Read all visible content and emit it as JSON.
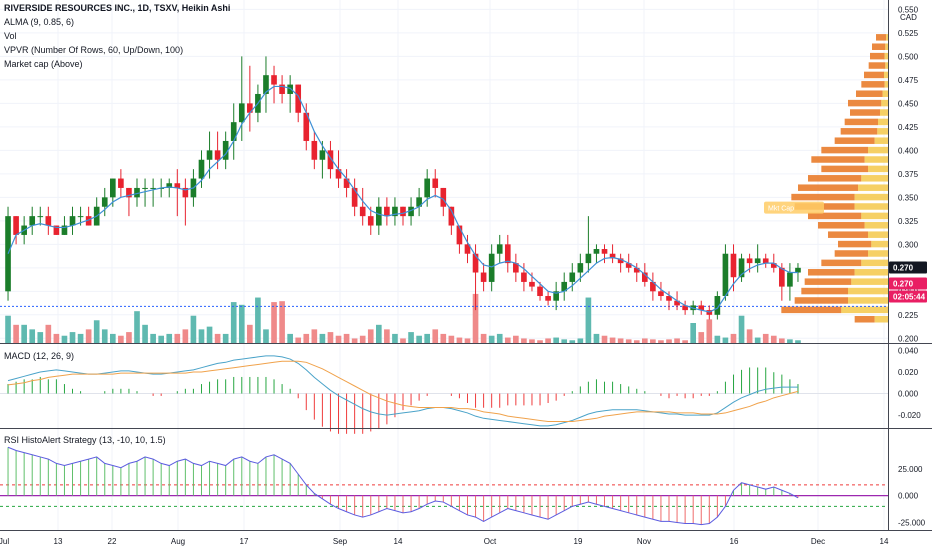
{
  "header": {
    "title": "RIVERSIDE RESOURCES INC., 1D, TSXV, Heikin Ashi",
    "indicators": [
      "ALMA (9, 0.85, 6)",
      "Vol",
      "VPVR (Number Of Rows, 60, Up/Down, 100)",
      "Market cap (Above)"
    ],
    "macd_label": "MACD (12, 26, 9)",
    "rsi_label": "RSI HistoAlert Strategy (13, -10, 10, 1.5)"
  },
  "price_axis": {
    "currency": "CAD",
    "ticks": [
      "0.550",
      "0.525",
      "0.500",
      "0.475",
      "0.450",
      "0.425",
      "0.400",
      "0.375",
      "0.350",
      "0.325",
      "0.300",
      "0.275",
      "0.250",
      "0.225",
      "0.200"
    ],
    "last_price": "0.270",
    "last_price2": "0.270",
    "countdown": "02:05:44",
    "mkt_cap_label": "Mkt Cap"
  },
  "macd_axis": {
    "ticks": [
      "0.040",
      "0.020",
      "0.000",
      "-0.020"
    ]
  },
  "rsi_axis": {
    "ticks": [
      "25.000",
      "0.000",
      "-25.000"
    ]
  },
  "time_axis": [
    "Jul",
    "13",
    "22",
    "Aug",
    "17",
    "Sep",
    "14",
    "Oct",
    "19",
    "Nov",
    "16",
    "Dec",
    "14"
  ],
  "colors": {
    "up": "#1b7d2a",
    "down": "#e8232f",
    "alma": "#3d8fd6",
    "vol_up": "#5fb9b0",
    "vol_down": "#ef8a8a",
    "vpvr_up": "#f5c84a",
    "vpvr_down": "#e8741f",
    "macd_line": "#4aa3c9",
    "signal_line": "#f0a24b",
    "last_price_bg": "#131722",
    "last_price2_bg": "#e91e63"
  },
  "chart_data": {
    "type": "candlestick",
    "title": "RIVERSIDE RESOURCES INC., 1D, TSXV, Heikin Ashi",
    "ylim": [
      0.195,
      0.56
    ],
    "candles": [
      [
        0.25,
        0.34,
        0.24,
        0.33
      ],
      [
        0.33,
        0.33,
        0.3,
        0.31
      ],
      [
        0.31,
        0.33,
        0.3,
        0.32
      ],
      [
        0.32,
        0.34,
        0.31,
        0.33
      ],
      [
        0.33,
        0.34,
        0.32,
        0.33
      ],
      [
        0.33,
        0.34,
        0.31,
        0.32
      ],
      [
        0.32,
        0.32,
        0.31,
        0.31
      ],
      [
        0.31,
        0.33,
        0.31,
        0.32
      ],
      [
        0.32,
        0.34,
        0.31,
        0.33
      ],
      [
        0.33,
        0.34,
        0.32,
        0.33
      ],
      [
        0.33,
        0.34,
        0.32,
        0.32
      ],
      [
        0.32,
        0.35,
        0.32,
        0.34
      ],
      [
        0.34,
        0.36,
        0.33,
        0.35
      ],
      [
        0.35,
        0.37,
        0.34,
        0.37
      ],
      [
        0.37,
        0.38,
        0.35,
        0.36
      ],
      [
        0.36,
        0.36,
        0.33,
        0.35
      ],
      [
        0.35,
        0.37,
        0.34,
        0.36
      ],
      [
        0.36,
        0.37,
        0.34,
        0.36
      ],
      [
        0.36,
        0.37,
        0.34,
        0.36
      ],
      [
        0.36,
        0.37,
        0.35,
        0.36
      ],
      [
        0.36,
        0.37,
        0.35,
        0.365
      ],
      [
        0.365,
        0.38,
        0.33,
        0.36
      ],
      [
        0.36,
        0.37,
        0.32,
        0.35
      ],
      [
        0.35,
        0.38,
        0.34,
        0.37
      ],
      [
        0.37,
        0.4,
        0.36,
        0.39
      ],
      [
        0.39,
        0.42,
        0.37,
        0.4
      ],
      [
        0.4,
        0.42,
        0.38,
        0.39
      ],
      [
        0.39,
        0.42,
        0.38,
        0.41
      ],
      [
        0.41,
        0.45,
        0.39,
        0.43
      ],
      [
        0.43,
        0.5,
        0.41,
        0.45
      ],
      [
        0.45,
        0.49,
        0.42,
        0.44
      ],
      [
        0.44,
        0.47,
        0.43,
        0.46
      ],
      [
        0.46,
        0.5,
        0.44,
        0.48
      ],
      [
        0.48,
        0.49,
        0.45,
        0.47
      ],
      [
        0.47,
        0.48,
        0.45,
        0.46
      ],
      [
        0.46,
        0.48,
        0.44,
        0.47
      ],
      [
        0.47,
        0.47,
        0.43,
        0.44
      ],
      [
        0.44,
        0.45,
        0.4,
        0.41
      ],
      [
        0.41,
        0.42,
        0.38,
        0.39
      ],
      [
        0.39,
        0.41,
        0.37,
        0.4
      ],
      [
        0.4,
        0.41,
        0.37,
        0.38
      ],
      [
        0.38,
        0.4,
        0.36,
        0.37
      ],
      [
        0.37,
        0.38,
        0.35,
        0.36
      ],
      [
        0.36,
        0.37,
        0.33,
        0.34
      ],
      [
        0.34,
        0.36,
        0.32,
        0.33
      ],
      [
        0.33,
        0.34,
        0.31,
        0.32
      ],
      [
        0.32,
        0.35,
        0.31,
        0.34
      ],
      [
        0.34,
        0.35,
        0.32,
        0.33
      ],
      [
        0.33,
        0.35,
        0.32,
        0.34
      ],
      [
        0.34,
        0.34,
        0.32,
        0.33
      ],
      [
        0.33,
        0.35,
        0.32,
        0.34
      ],
      [
        0.34,
        0.36,
        0.33,
        0.35
      ],
      [
        0.35,
        0.38,
        0.34,
        0.37
      ],
      [
        0.37,
        0.38,
        0.35,
        0.36
      ],
      [
        0.36,
        0.36,
        0.33,
        0.34
      ],
      [
        0.34,
        0.34,
        0.31,
        0.32
      ],
      [
        0.32,
        0.32,
        0.29,
        0.3
      ],
      [
        0.3,
        0.31,
        0.28,
        0.29
      ],
      [
        0.29,
        0.3,
        0.23,
        0.27
      ],
      [
        0.27,
        0.28,
        0.25,
        0.26
      ],
      [
        0.26,
        0.3,
        0.25,
        0.29
      ],
      [
        0.29,
        0.31,
        0.28,
        0.3
      ],
      [
        0.3,
        0.31,
        0.27,
        0.28
      ],
      [
        0.28,
        0.29,
        0.26,
        0.27
      ],
      [
        0.27,
        0.28,
        0.25,
        0.26
      ],
      [
        0.26,
        0.27,
        0.25,
        0.255
      ],
      [
        0.255,
        0.26,
        0.24,
        0.245
      ],
      [
        0.245,
        0.25,
        0.235,
        0.24
      ],
      [
        0.24,
        0.26,
        0.23,
        0.25
      ],
      [
        0.25,
        0.27,
        0.24,
        0.26
      ],
      [
        0.26,
        0.28,
        0.25,
        0.27
      ],
      [
        0.27,
        0.29,
        0.26,
        0.28
      ],
      [
        0.28,
        0.33,
        0.27,
        0.29
      ],
      [
        0.29,
        0.3,
        0.28,
        0.295
      ],
      [
        0.295,
        0.3,
        0.28,
        0.29
      ],
      [
        0.29,
        0.3,
        0.28,
        0.285
      ],
      [
        0.285,
        0.29,
        0.27,
        0.28
      ],
      [
        0.28,
        0.29,
        0.27,
        0.275
      ],
      [
        0.275,
        0.28,
        0.26,
        0.27
      ],
      [
        0.27,
        0.28,
        0.255,
        0.26
      ],
      [
        0.26,
        0.27,
        0.24,
        0.25
      ],
      [
        0.25,
        0.26,
        0.24,
        0.245
      ],
      [
        0.245,
        0.25,
        0.23,
        0.24
      ],
      [
        0.24,
        0.25,
        0.23,
        0.235
      ],
      [
        0.235,
        0.24,
        0.225,
        0.23
      ],
      [
        0.23,
        0.24,
        0.225,
        0.235
      ],
      [
        0.235,
        0.24,
        0.225,
        0.23
      ],
      [
        0.23,
        0.235,
        0.22,
        0.225
      ],
      [
        0.225,
        0.25,
        0.22,
        0.245
      ],
      [
        0.245,
        0.3,
        0.24,
        0.29
      ],
      [
        0.29,
        0.3,
        0.25,
        0.265
      ],
      [
        0.265,
        0.29,
        0.26,
        0.285
      ],
      [
        0.285,
        0.29,
        0.27,
        0.28
      ],
      [
        0.28,
        0.3,
        0.27,
        0.285
      ],
      [
        0.285,
        0.29,
        0.275,
        0.28
      ],
      [
        0.28,
        0.29,
        0.27,
        0.275
      ],
      [
        0.275,
        0.28,
        0.24,
        0.255
      ],
      [
        0.255,
        0.28,
        0.24,
        0.27
      ],
      [
        0.27,
        0.28,
        0.26,
        0.275
      ]
    ],
    "alma": [
      0.29,
      0.31,
      0.315,
      0.32,
      0.322,
      0.32,
      0.318,
      0.318,
      0.32,
      0.323,
      0.326,
      0.33,
      0.337,
      0.345,
      0.35,
      0.352,
      0.354,
      0.356,
      0.358,
      0.36,
      0.361,
      0.36,
      0.358,
      0.36,
      0.368,
      0.38,
      0.388,
      0.396,
      0.41,
      0.428,
      0.44,
      0.45,
      0.462,
      0.468,
      0.468,
      0.466,
      0.458,
      0.44,
      0.42,
      0.405,
      0.392,
      0.38,
      0.37,
      0.358,
      0.346,
      0.336,
      0.332,
      0.33,
      0.332,
      0.333,
      0.336,
      0.34,
      0.348,
      0.352,
      0.348,
      0.336,
      0.318,
      0.302,
      0.288,
      0.278,
      0.276,
      0.28,
      0.282,
      0.28,
      0.274,
      0.266,
      0.258,
      0.25,
      0.248,
      0.25,
      0.256,
      0.264,
      0.272,
      0.28,
      0.285,
      0.286,
      0.284,
      0.28,
      0.275,
      0.268,
      0.26,
      0.252,
      0.246,
      0.24,
      0.235,
      0.232,
      0.23,
      0.228,
      0.232,
      0.245,
      0.258,
      0.268,
      0.274,
      0.278,
      0.28,
      0.28,
      0.274,
      0.27,
      0.27
    ],
    "volume": [
      3,
      2,
      2,
      1.5,
      1.2,
      2,
      1,
      0.8,
      1.2,
      1,
      1.5,
      2.5,
      1.5,
      1,
      0.8,
      1.2,
      3.5,
      2,
      1,
      0.8,
      1,
      1,
      1.5,
      3,
      1.5,
      1.8,
      1,
      1,
      4.5,
      4.2,
      2,
      5,
      1.5,
      4.5,
      4.6,
      1,
      0.6,
      1,
      1.5,
      1,
      1.2,
      0.8,
      1,
      0.5,
      0.8,
      1.5,
      2,
      1.5,
      1,
      0.5,
      1.2,
      0.8,
      1,
      1.5,
      1,
      0.8,
      0.6,
      0.5,
      5.4,
      1,
      0.8,
      1,
      0.6,
      0.8,
      0.5,
      0.4,
      0.3,
      0.5,
      0.6,
      0.4,
      0.3,
      0.5,
      5,
      1,
      0.8,
      0.6,
      0.5,
      0.4,
      0.3,
      0.5,
      0.4,
      0.3,
      0.4,
      0.5,
      0.3,
      2.2,
      1.2,
      2.6,
      0.8,
      0.6,
      1,
      3,
      1.5,
      0.6,
      1,
      0.8,
      0.5,
      0.4,
      0.3
    ],
    "volume_max": 5.5,
    "macd": [
      0.012,
      0.014,
      0.016,
      0.018,
      0.02,
      0.021,
      0.022,
      0.021,
      0.02,
      0.019,
      0.018,
      0.018,
      0.019,
      0.02,
      0.021,
      0.021,
      0.02,
      0.019,
      0.018,
      0.018,
      0.019,
      0.02,
      0.021,
      0.022,
      0.024,
      0.026,
      0.028,
      0.029,
      0.031,
      0.032,
      0.033,
      0.034,
      0.035,
      0.035,
      0.034,
      0.032,
      0.028,
      0.022,
      0.015,
      0.009,
      0.003,
      -0.002,
      -0.006,
      -0.01,
      -0.014,
      -0.017,
      -0.019,
      -0.02,
      -0.019,
      -0.018,
      -0.017,
      -0.016,
      -0.014,
      -0.013,
      -0.013,
      -0.014,
      -0.016,
      -0.018,
      -0.021,
      -0.023,
      -0.024,
      -0.025,
      -0.026,
      -0.027,
      -0.028,
      -0.029,
      -0.03,
      -0.03,
      -0.029,
      -0.027,
      -0.025,
      -0.022,
      -0.019,
      -0.017,
      -0.016,
      -0.015,
      -0.015,
      -0.015,
      -0.015,
      -0.016,
      -0.017,
      -0.018,
      -0.019,
      -0.019,
      -0.02,
      -0.02,
      -0.02,
      -0.02,
      -0.018,
      -0.013,
      -0.008,
      -0.004,
      -0.001,
      0.002,
      0.004,
      0.005,
      0.006,
      0.006,
      0.006
    ],
    "signal": [
      0.008,
      0.009,
      0.01,
      0.012,
      0.013,
      0.015,
      0.016,
      0.017,
      0.018,
      0.018,
      0.018,
      0.018,
      0.018,
      0.018,
      0.019,
      0.019,
      0.019,
      0.019,
      0.019,
      0.019,
      0.019,
      0.019,
      0.019,
      0.02,
      0.02,
      0.021,
      0.022,
      0.023,
      0.024,
      0.025,
      0.026,
      0.027,
      0.028,
      0.029,
      0.03,
      0.03,
      0.03,
      0.029,
      0.026,
      0.023,
      0.019,
      0.015,
      0.011,
      0.007,
      0.003,
      -0.001,
      -0.004,
      -0.007,
      -0.009,
      -0.011,
      -0.012,
      -0.013,
      -0.013,
      -0.013,
      -0.013,
      -0.013,
      -0.014,
      -0.014,
      -0.015,
      -0.017,
      -0.018,
      -0.019,
      -0.021,
      -0.022,
      -0.023,
      -0.024,
      -0.025,
      -0.026,
      -0.026,
      -0.026,
      -0.026,
      -0.025,
      -0.024,
      -0.023,
      -0.021,
      -0.02,
      -0.019,
      -0.018,
      -0.017,
      -0.017,
      -0.017,
      -0.017,
      -0.017,
      -0.018,
      -0.018,
      -0.018,
      -0.019,
      -0.019,
      -0.019,
      -0.018,
      -0.016,
      -0.014,
      -0.012,
      -0.009,
      -0.007,
      -0.004,
      -0.002,
      0.0,
      0.002
    ],
    "macd_ylim": [
      -0.032,
      0.046
    ],
    "rsi": [
      45,
      42,
      40,
      38,
      36,
      34,
      30,
      28,
      30,
      32,
      34,
      36,
      30,
      28,
      26,
      30,
      32,
      36,
      34,
      30,
      28,
      32,
      34,
      30,
      28,
      32,
      30,
      28,
      34,
      36,
      32,
      30,
      36,
      38,
      34,
      30,
      20,
      10,
      2,
      -3,
      -8,
      -12,
      -15,
      -18,
      -20,
      -18,
      -15,
      -12,
      -14,
      -16,
      -15,
      -12,
      -8,
      -5,
      -6,
      -10,
      -14,
      -18,
      -20,
      -24,
      -20,
      -16,
      -12,
      -14,
      -16,
      -18,
      -20,
      -22,
      -18,
      -14,
      -10,
      -8,
      -6,
      -8,
      -10,
      -12,
      -14,
      -16,
      -18,
      -20,
      -22,
      -24,
      -24,
      -25,
      -26,
      -26,
      -27,
      -26,
      -20,
      -10,
      5,
      12,
      10,
      8,
      6,
      8,
      5,
      2,
      -2
    ],
    "rsi_ylim": [
      -32,
      62
    ],
    "rsi_upper": 10,
    "rsi_lower": -10,
    "vpvr": [
      [
        0.52,
        0.3,
        1.5
      ],
      [
        0.51,
        0.4,
        2
      ],
      [
        0.5,
        0.5,
        2.2
      ],
      [
        0.49,
        0.4,
        2.5
      ],
      [
        0.48,
        0.6,
        3
      ],
      [
        0.47,
        0.5,
        3.5
      ],
      [
        0.46,
        0.8,
        4
      ],
      [
        0.45,
        1,
        5
      ],
      [
        0.44,
        1.2,
        4.5
      ],
      [
        0.43,
        1.5,
        5
      ],
      [
        0.42,
        1.6,
        5.5
      ],
      [
        0.41,
        2,
        6
      ],
      [
        0.4,
        3,
        7
      ],
      [
        0.39,
        3.5,
        8
      ],
      [
        0.38,
        3,
        7
      ],
      [
        0.37,
        4,
        8
      ],
      [
        0.36,
        4.5,
        9
      ],
      [
        0.35,
        5,
        9.5
      ],
      [
        0.34,
        5,
        9
      ],
      [
        0.33,
        4,
        8
      ],
      [
        0.32,
        3.5,
        7
      ],
      [
        0.31,
        3,
        6
      ],
      [
        0.3,
        2.5,
        5
      ],
      [
        0.29,
        3,
        5
      ],
      [
        0.28,
        4,
        6
      ],
      [
        0.27,
        5,
        7
      ],
      [
        0.26,
        5.5,
        7
      ],
      [
        0.25,
        6,
        7
      ],
      [
        0.24,
        6,
        8
      ],
      [
        0.23,
        7,
        9
      ],
      [
        0.22,
        2,
        3
      ]
    ]
  }
}
